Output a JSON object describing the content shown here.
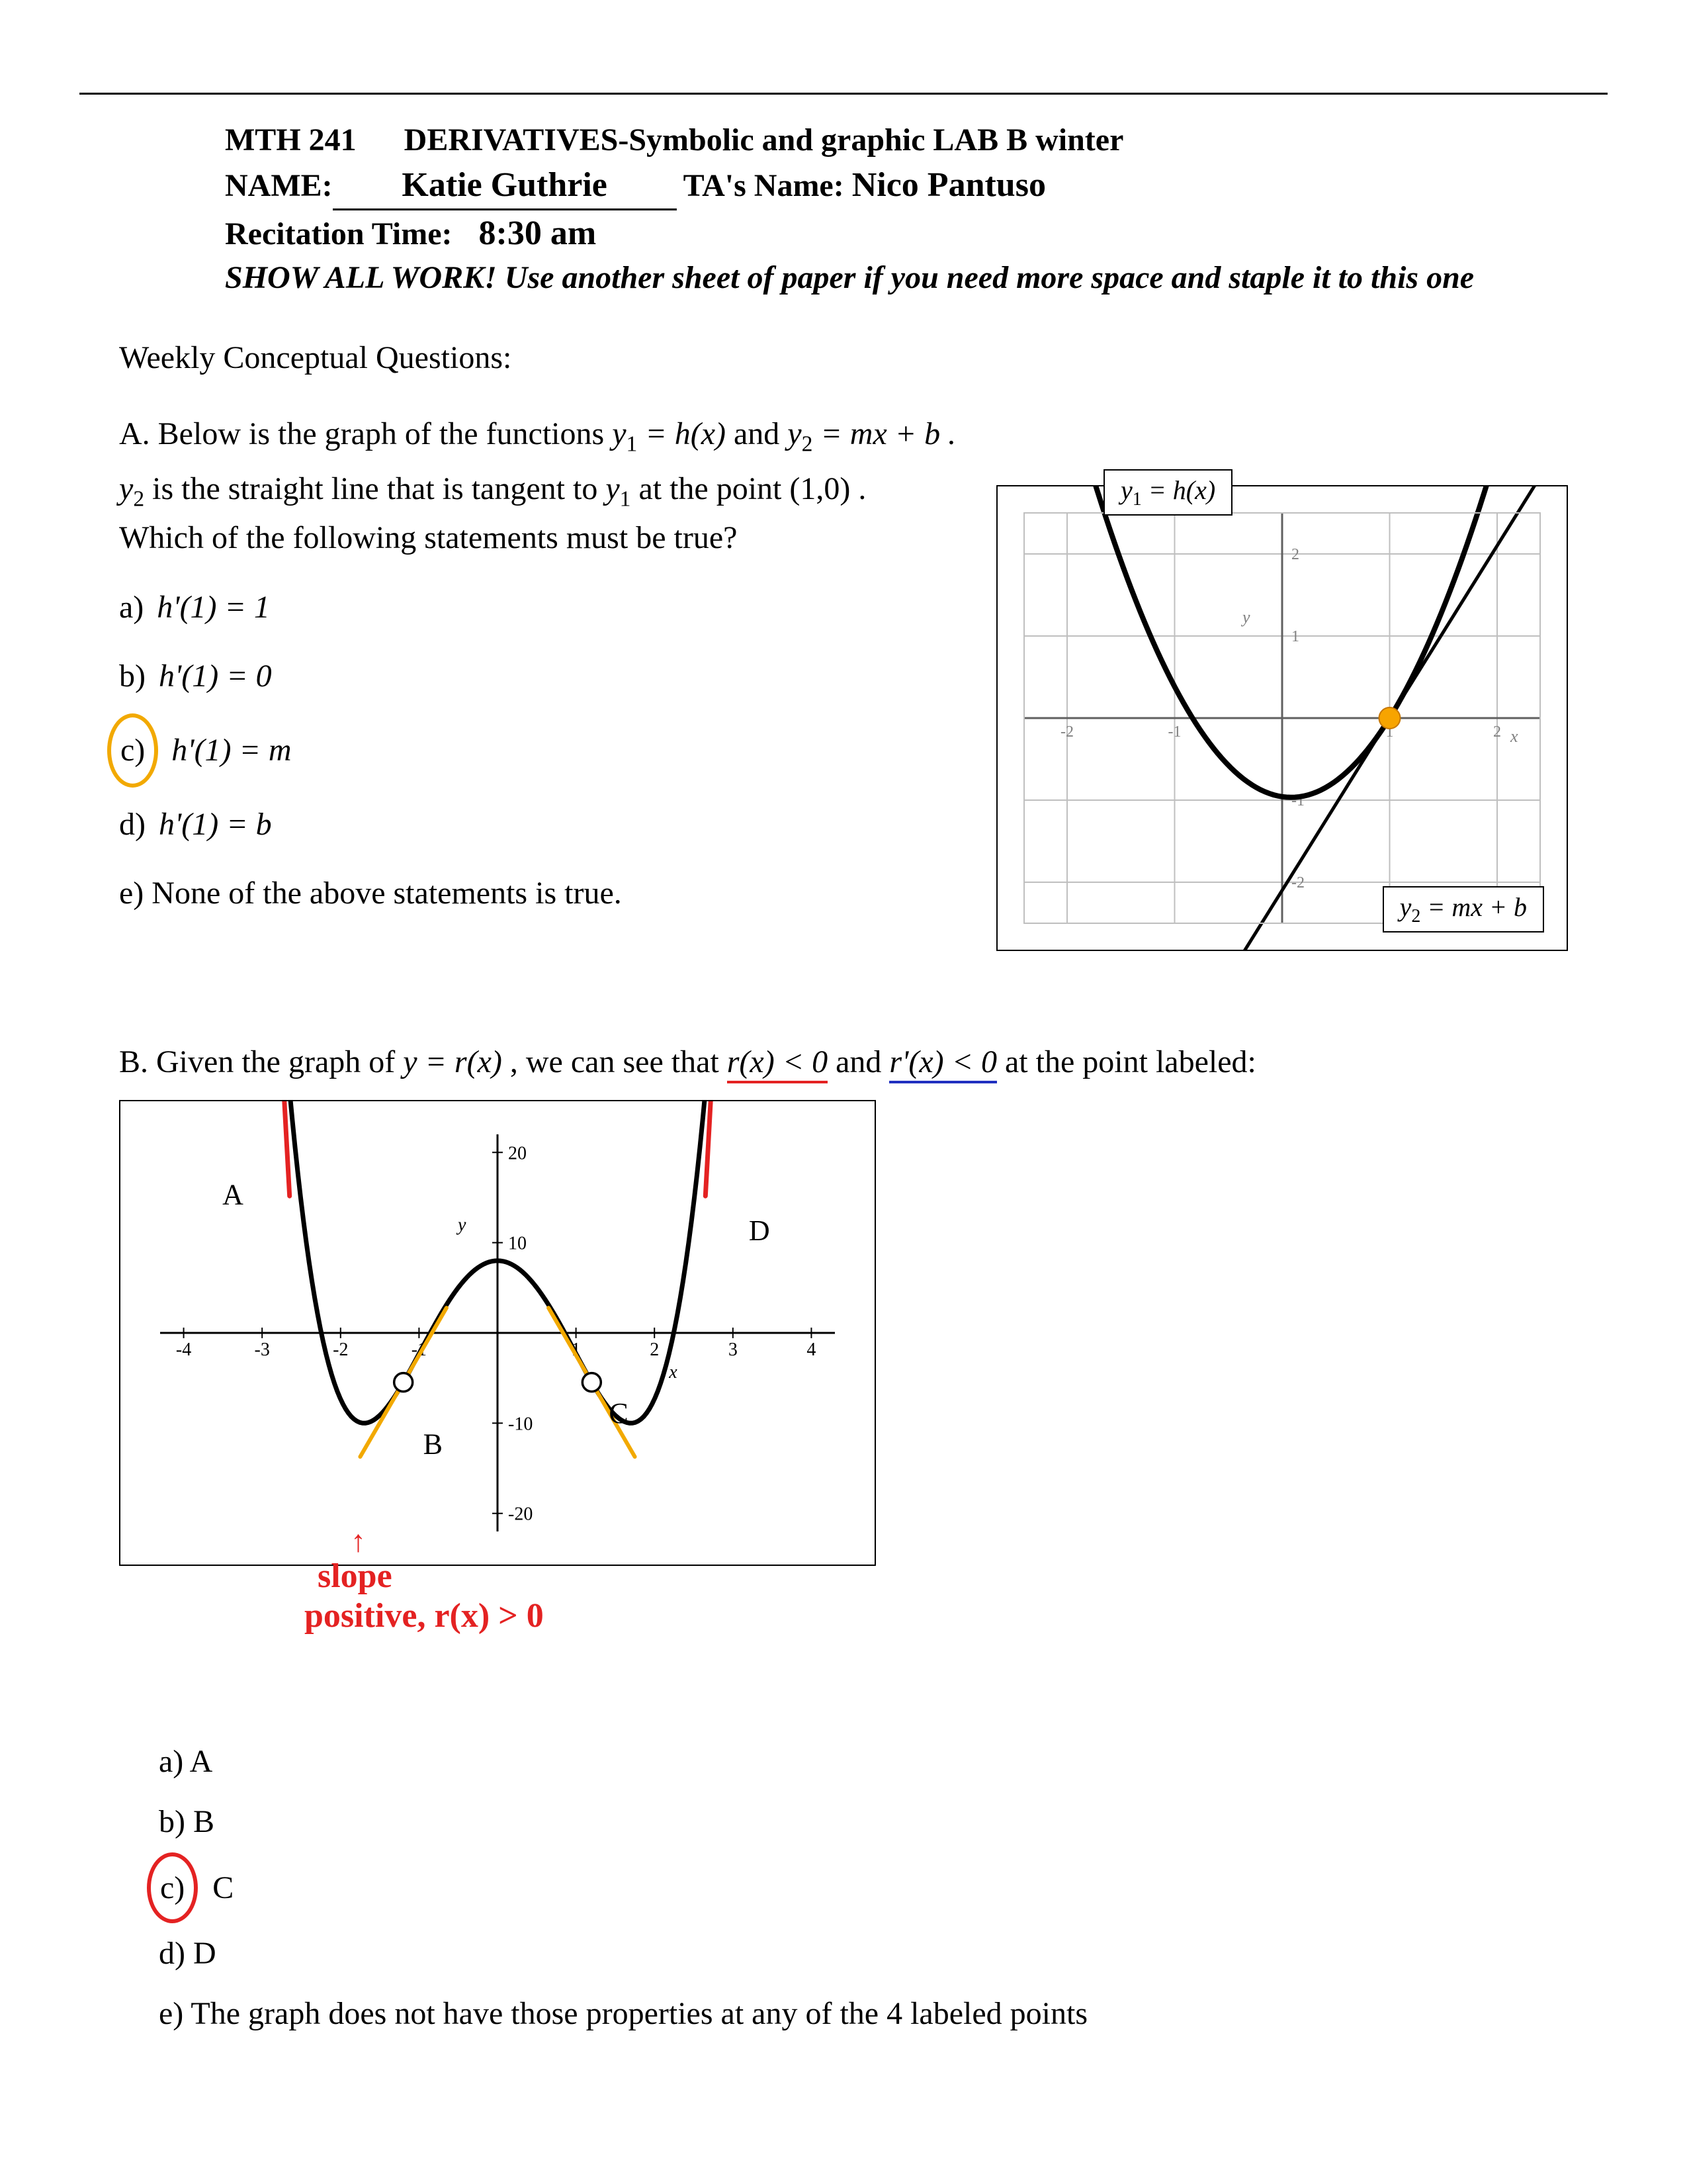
{
  "header": {
    "course": "MTH 241",
    "title": "DERIVATIVES-Symbolic and graphic  LAB B winter",
    "name_label": "NAME:",
    "name_value": "Katie Guthrie",
    "ta_label": "TA's Name:",
    "ta_value": "Nico Pantuso",
    "rec_label": "Recitation Time:",
    "rec_value": "8:30 am",
    "instructions": "SHOW ALL WORK! Use another sheet of paper if you need more space and staple it to this one"
  },
  "weekly": "Weekly Conceptual Questions:",
  "qa": {
    "intro1_pre": "A.  Below is the graph of the functions ",
    "intro1_y1": "y",
    "intro1_eq1": " = h(x)",
    "intro1_and": " and ",
    "intro1_y2": "y",
    "intro1_eq2": " = mx + b .",
    "intro2_pre": "y",
    "intro2_mid": " is the straight line that is tangent to ",
    "intro2_y1": "y",
    "intro2_post": " at the point (1,0) .",
    "intro3": "Which of the following statements must be true?",
    "opts": {
      "a_key": "a)",
      "a_math": "h'(1) = 1",
      "b_key": "b)",
      "b_math": "h'(1) = 0",
      "c_key": "c)",
      "c_math": "h'(1) = m",
      "d_key": "d)",
      "d_math": "h'(1) = b",
      "e": "e) None of the above statements is true."
    },
    "chart": {
      "type": "line",
      "xlim": [
        -2.4,
        2.4
      ],
      "ylim": [
        -2.5,
        2.5
      ],
      "xticks": [
        -2,
        -1,
        0,
        1,
        2
      ],
      "yticks": [
        -2,
        -1,
        1,
        2
      ],
      "grid_color": "#bfbfbf",
      "axis_color": "#606060",
      "label_color": "#808080",
      "bg_color": "#ffffff",
      "parabola_color": "#000000",
      "parabola_width": 8,
      "line_color": "#000000",
      "line_width": 5,
      "tangent_point": [
        1,
        0
      ],
      "dot_color": "#f7a400",
      "label_y1": "y₁ = h(x)",
      "label_y2": "y₂ = mx + b",
      "axis_x_label": "x",
      "axis_y_label": "y",
      "parabola": {
        "a": 1.15,
        "h": 0.083,
        "k": -0.966
      },
      "tangent": {
        "m": 2.1,
        "b": -2.1
      }
    }
  },
  "qb": {
    "intro_pre": "B. Given the graph of ",
    "intro_fn": "y = r(x)",
    "intro_mid": ", we can see that ",
    "intro_r": "r(x) < 0",
    "intro_and": "  and ",
    "intro_rp": "r'(x) < 0",
    "intro_post": " at the point labeled:",
    "opts": {
      "a": "a)  A",
      "b": "b)  B",
      "c_key": "c)",
      "c_val": "C",
      "d": "d)  D",
      "e": "e)  The graph does not have those properties at any of the 4 labeled points"
    },
    "chart": {
      "type": "line",
      "xlim": [
        -4.3,
        4.3
      ],
      "ylim": [
        -22,
        22
      ],
      "xticks": [
        -4,
        -3,
        -2,
        -1,
        0,
        1,
        2,
        3,
        4
      ],
      "yticks": [
        -20,
        -10,
        10,
        20
      ],
      "axis_color": "#000000",
      "curve_color": "#000000",
      "curve_width": 7,
      "tangent_color": "#f2a900",
      "tangent_width": 6,
      "cross_color": "#e42222",
      "cross_width": 7,
      "point_circle_stroke": "#000000",
      "axis_x_label": "x",
      "axis_y_label": "y",
      "points": {
        "A": {
          "x": -3.0,
          "y": 15.0
        },
        "B": {
          "x": -1.2,
          "y": -7.3
        },
        "C": {
          "x": 1.2,
          "y": -4.5
        },
        "D": {
          "x": 3.0,
          "y": 11.0
        }
      },
      "annotation1": "slope",
      "annotation2": "positive, r(x) > 0"
    }
  }
}
